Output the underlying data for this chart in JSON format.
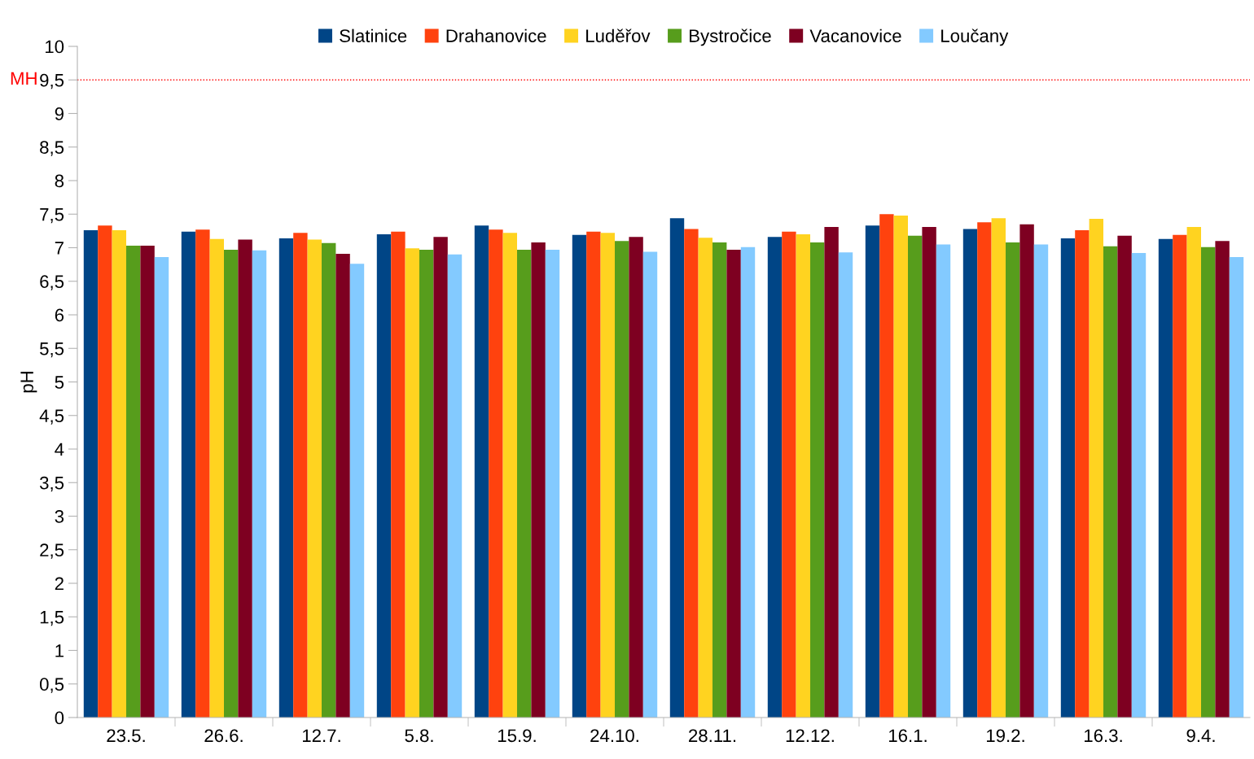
{
  "chart_data": {
    "type": "bar",
    "ylabel": "pH",
    "categories": [
      "23.5.",
      "26.6.",
      "12.7.",
      "5.8.",
      "15.9.",
      "24.10.",
      "28.11.",
      "12.12.",
      "16.1.",
      "19.2.",
      "16.3.",
      "9.4."
    ],
    "series": [
      {
        "name": "Slatinice",
        "color": "#004586",
        "values": [
          7.26,
          7.24,
          7.14,
          7.2,
          7.33,
          7.19,
          7.44,
          7.16,
          7.33,
          7.28,
          7.14,
          7.13
        ]
      },
      {
        "name": "Drahanovice",
        "color": "#ff420e",
        "values": [
          7.33,
          7.27,
          7.22,
          7.24,
          7.27,
          7.24,
          7.28,
          7.24,
          7.5,
          7.38,
          7.26,
          7.19
        ]
      },
      {
        "name": "Luděřov",
        "color": "#ffd320",
        "values": [
          7.26,
          7.13,
          7.12,
          6.99,
          7.22,
          7.22,
          7.15,
          7.2,
          7.48,
          7.44,
          7.43,
          7.31
        ]
      },
      {
        "name": "Bystročice",
        "color": "#579d1c",
        "values": [
          7.03,
          6.97,
          7.07,
          6.97,
          6.97,
          7.1,
          7.08,
          7.08,
          7.18,
          7.08,
          7.02,
          7.01
        ]
      },
      {
        "name": "Vacanovice",
        "color": "#7e0021",
        "values": [
          7.03,
          7.12,
          6.91,
          7.16,
          7.08,
          7.16,
          6.97,
          7.31,
          7.31,
          7.35,
          7.18,
          7.1
        ]
      },
      {
        "name": "Loučany",
        "color": "#83caff",
        "values": [
          6.86,
          6.96,
          6.76,
          6.9,
          6.97,
          6.94,
          7.01,
          6.93,
          7.05,
          7.05,
          6.92,
          6.86
        ]
      }
    ],
    "ylim": [
      0,
      10
    ],
    "yticks": [
      0,
      {
        "value": 0.5,
        "label": "0,5"
      },
      1,
      {
        "value": 1.5,
        "label": "1,5"
      },
      2,
      {
        "value": 2.5,
        "label": "2,5"
      },
      3,
      {
        "value": 3.5,
        "label": "3,5"
      },
      4,
      {
        "value": 4.5,
        "label": "4,5"
      },
      5,
      {
        "value": 5.5,
        "label": "5,5"
      },
      6,
      {
        "value": 6.5,
        "label": "6,5"
      },
      7,
      {
        "value": 7.5,
        "label": "7,5"
      },
      8,
      {
        "value": 8.5,
        "label": "8,5"
      },
      9,
      {
        "value": 9.5,
        "label": "9,5"
      },
      10
    ],
    "ref_lines": [
      {
        "axis": "y",
        "value": 9.5,
        "label": "MH",
        "color": "#ff0000",
        "line_style": "dotted"
      }
    ],
    "grid": false,
    "legend": "top"
  }
}
